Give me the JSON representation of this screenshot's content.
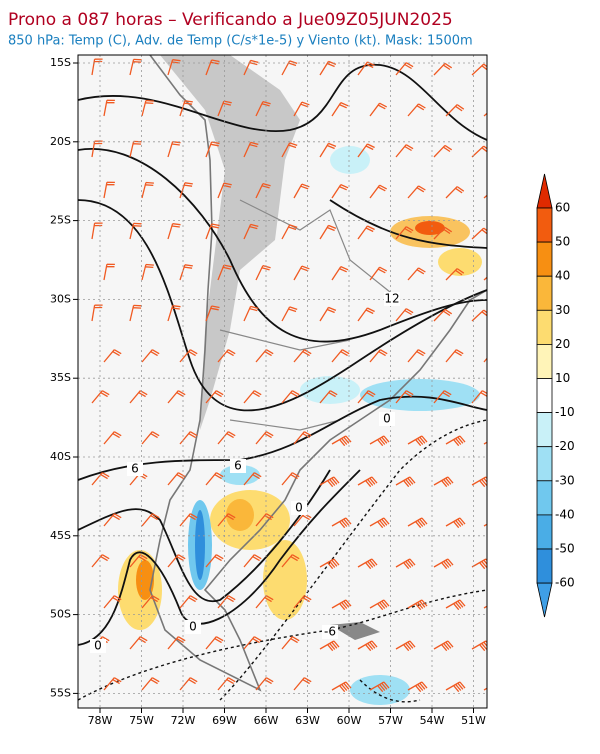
{
  "header": {
    "title": "Prono a 087 horas – Verificando a Jue09Z05JUN2025",
    "subtitle": "850 hPa: Temp (C), Adv. de Temp (C/s*1e-5) y Viento (kt). Mask: 1500m"
  },
  "map": {
    "lat_labels": [
      "15S",
      "20S",
      "25S",
      "30S",
      "35S",
      "40S",
      "45S",
      "50S",
      "55S"
    ],
    "lon_labels": [
      "78W",
      "75W",
      "72W",
      "69W",
      "66W",
      "63W",
      "60W",
      "57W",
      "54W",
      "51W"
    ],
    "contour_labels": [
      "12",
      "6",
      "6",
      "0",
      "0",
      "0",
      "0",
      "-6"
    ]
  },
  "colorbar": {
    "ticks": [
      60,
      50,
      40,
      30,
      20,
      10,
      -10,
      -20,
      -30,
      -40,
      -50,
      -60
    ],
    "colors": [
      "#e02a00",
      "#f25c0f",
      "#f78f12",
      "#fab73a",
      "#fddc70",
      "#fff4b8",
      "#ffffff",
      "#c9f1f8",
      "#9fe0f4",
      "#70c8ee",
      "#4aade6",
      "#2f8fdc",
      "#3f9fe6"
    ]
  }
}
